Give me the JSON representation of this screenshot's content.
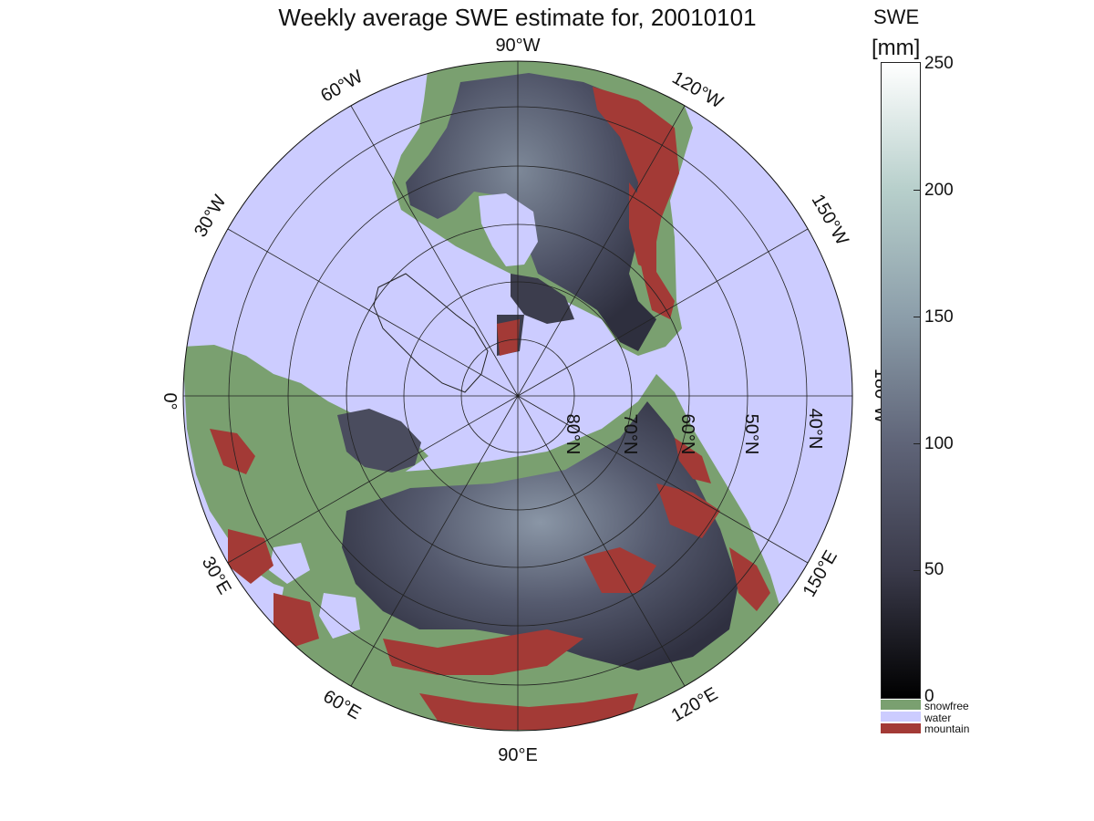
{
  "title": "Weekly average SWE estimate for, 20010101",
  "colorbar": {
    "label": "SWE",
    "unit": "[mm]",
    "ticks": [
      "250",
      "200",
      "150",
      "100",
      "50",
      "0"
    ],
    "categories": [
      {
        "label": "snowfree",
        "color": "#7aa070"
      },
      {
        "label": "water",
        "color": "#ccccff"
      },
      {
        "label": "mountain",
        "color": "#a33a36"
      }
    ],
    "gradient": [
      "#000000",
      "#3a3a4a",
      "#5f6478",
      "#8c9eaa",
      "#b7cfcb",
      "#ffffff"
    ]
  },
  "map": {
    "projection": "polar-stereographic",
    "longitude_labels": [
      "90°W",
      "120°W",
      "150°W",
      "180°W",
      "150°E",
      "120°E",
      "90°E",
      "60°E",
      "30°E",
      "0°",
      "30°W",
      "60°W"
    ],
    "latitude_labels": [
      "80°N",
      "70°N",
      "60°N",
      "50°N",
      "40°N"
    ],
    "colors": {
      "water": "#ccccff",
      "snow_dark": "#3a3a4a",
      "snow_light": "#a5b5be",
      "snowfree": "#7aa070",
      "mountain": "#a33a36",
      "grid": "#222222"
    }
  }
}
